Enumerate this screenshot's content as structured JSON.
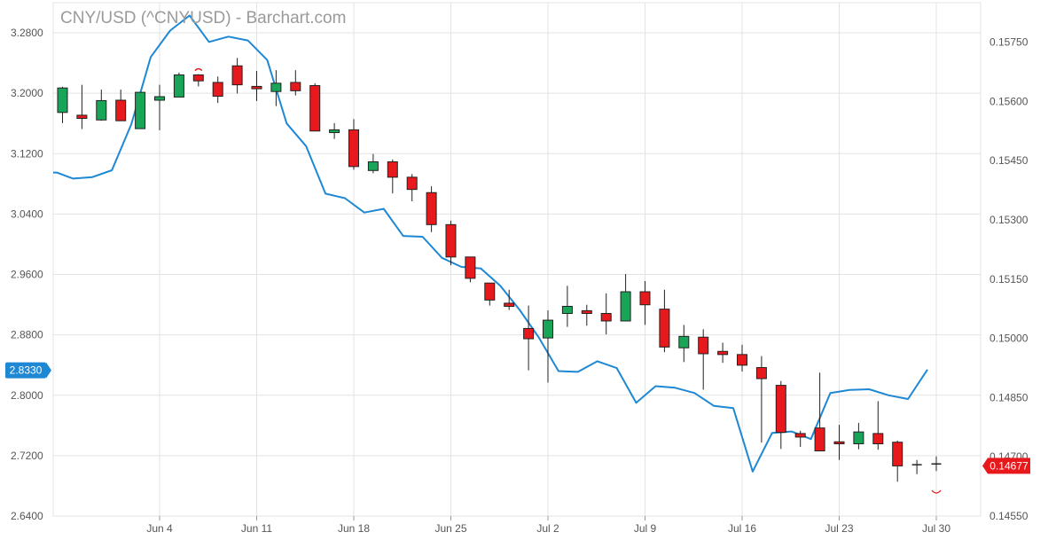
{
  "chart_data": {
    "type": "candlestick",
    "title": "CNY/USD (^CNYUSD) - Barchart.com",
    "grid": true,
    "legend": "none",
    "x_labels": [
      "Jun 4",
      "Jun 11",
      "Jun 18",
      "Jun 25",
      "Jul 2",
      "Jul 9",
      "Jul 16",
      "Jul 23",
      "Jul 30"
    ],
    "left_axis": {
      "ticks": [
        "3.2800",
        "3.2000",
        "3.1200",
        "3.0400",
        "2.9600",
        "2.8800",
        "2.8000",
        "2.7200",
        "2.6400"
      ],
      "range": [
        2.64,
        3.32
      ],
      "current_label": "2.8330",
      "current_value": 2.833,
      "current_color": "#1e88d4"
    },
    "right_axis": {
      "ticks": [
        "0.15750",
        "0.15600",
        "0.15450",
        "0.15300",
        "0.15150",
        "0.15000",
        "0.14850",
        "0.14700",
        "0.14550"
      ],
      "range": [
        0.1455,
        0.1585
      ],
      "current_label": "0.14677",
      "current_value": 0.14677,
      "current_color": "#e8191c"
    },
    "candles": [
      {
        "date": "May 31",
        "open": 0.15572,
        "high": 0.15637,
        "low": 0.15545,
        "close": 0.15634
      },
      {
        "date": "Jun 1",
        "open": 0.15565,
        "high": 0.15642,
        "low": 0.1553,
        "close": 0.15557
      },
      {
        "date": "Jun 4",
        "open": 0.15553,
        "high": 0.1563,
        "low": 0.15551,
        "close": 0.15602
      },
      {
        "date": "Jun 5",
        "open": 0.15603,
        "high": 0.1563,
        "low": 0.15553,
        "close": 0.15551
      },
      {
        "date": "Jun 6",
        "open": 0.15531,
        "high": 0.15623,
        "low": 0.15531,
        "close": 0.15623
      },
      {
        "date": "Jun 7",
        "open": 0.15603,
        "high": 0.15642,
        "low": 0.15527,
        "close": 0.15612
      },
      {
        "date": "Jun 8",
        "open": 0.15611,
        "high": 0.15673,
        "low": 0.15611,
        "close": 0.15667
      },
      {
        "date": "Jun 11",
        "open": 0.15667,
        "high": 0.15669,
        "low": 0.15638,
        "close": 0.15652
      },
      {
        "date": "Jun 12",
        "open": 0.15648,
        "high": 0.15663,
        "low": 0.15596,
        "close": 0.15613
      },
      {
        "date": "Jun 13",
        "open": 0.1569,
        "high": 0.1571,
        "low": 0.1562,
        "close": 0.15642
      },
      {
        "date": "Jun 14",
        "open": 0.15638,
        "high": 0.15677,
        "low": 0.15601,
        "close": 0.15632
      },
      {
        "date": "Jun 15",
        "open": 0.15625,
        "high": 0.15679,
        "low": 0.15588,
        "close": 0.15646
      },
      {
        "date": "Jun 18",
        "open": 0.15648,
        "high": 0.15679,
        "low": 0.15615,
        "close": 0.15627
      },
      {
        "date": "Jun 19",
        "open": 0.1564,
        "high": 0.15646,
        "low": 0.15525,
        "close": 0.15525
      },
      {
        "date": "Jun 20",
        "open": 0.15521,
        "high": 0.15545,
        "low": 0.15505,
        "close": 0.15528
      },
      {
        "date": "Jun 21",
        "open": 0.15528,
        "high": 0.15555,
        "low": 0.15427,
        "close": 0.15435
      },
      {
        "date": "Jun 22",
        "open": 0.15425,
        "high": 0.15467,
        "low": 0.15418,
        "close": 0.15447
      },
      {
        "date": "Jun 25",
        "open": 0.15447,
        "high": 0.15453,
        "low": 0.15367,
        "close": 0.15408
      },
      {
        "date": "Jun 26",
        "open": 0.15408,
        "high": 0.15416,
        "low": 0.15347,
        "close": 0.15377
      },
      {
        "date": "Jun 27",
        "open": 0.15369,
        "high": 0.15385,
        "low": 0.15269,
        "close": 0.15288
      },
      {
        "date": "Jun 28",
        "open": 0.15288,
        "high": 0.15298,
        "low": 0.15185,
        "close": 0.15206
      },
      {
        "date": "Jun 29",
        "open": 0.15206,
        "high": 0.15206,
        "low": 0.15142,
        "close": 0.15152
      },
      {
        "date": "Jul 2",
        "open": 0.1514,
        "high": 0.1514,
        "low": 0.15083,
        "close": 0.15097
      },
      {
        "date": "Jul 3",
        "open": 0.15089,
        "high": 0.15123,
        "low": 0.15072,
        "close": 0.15081
      },
      {
        "date": "Jul 4",
        "open": 0.15025,
        "high": 0.15083,
        "low": 0.14919,
        "close": 0.14999
      },
      {
        "date": "Jul 5",
        "open": 0.15001,
        "high": 0.15071,
        "low": 0.14888,
        "close": 0.15046
      },
      {
        "date": "Jul 6",
        "open": 0.15063,
        "high": 0.15133,
        "low": 0.15029,
        "close": 0.15081
      },
      {
        "date": "Jul 9",
        "open": 0.1507,
        "high": 0.15085,
        "low": 0.15032,
        "close": 0.15063
      },
      {
        "date": "Jul 10",
        "open": 0.15063,
        "high": 0.15114,
        "low": 0.1501,
        "close": 0.15044
      },
      {
        "date": "Jul 11",
        "open": 0.15044,
        "high": 0.15163,
        "low": 0.15044,
        "close": 0.15118
      },
      {
        "date": "Jul 12",
        "open": 0.15118,
        "high": 0.15145,
        "low": 0.15034,
        "close": 0.15085
      },
      {
        "date": "Jul 13",
        "open": 0.15074,
        "high": 0.15123,
        "low": 0.14965,
        "close": 0.14978
      },
      {
        "date": "Jul 16",
        "open": 0.14976,
        "high": 0.15034,
        "low": 0.1494,
        "close": 0.15005
      },
      {
        "date": "Jul 17",
        "open": 0.15003,
        "high": 0.15023,
        "low": 0.1487,
        "close": 0.14961
      },
      {
        "date": "Jul 18",
        "open": 0.14967,
        "high": 0.14989,
        "low": 0.14938,
        "close": 0.14959
      },
      {
        "date": "Jul 19",
        "open": 0.14959,
        "high": 0.14984,
        "low": 0.14916,
        "close": 0.14932
      },
      {
        "date": "Jul 20",
        "open": 0.14926,
        "high": 0.14955,
        "low": 0.14736,
        "close": 0.14898
      },
      {
        "date": "Jul 23",
        "open": 0.14881,
        "high": 0.14892,
        "low": 0.1472,
        "close": 0.14762
      },
      {
        "date": "Jul 24",
        "open": 0.14759,
        "high": 0.14766,
        "low": 0.14725,
        "close": 0.1475
      },
      {
        "date": "Jul 25",
        "open": 0.14773,
        "high": 0.14913,
        "low": 0.14723,
        "close": 0.14715
      },
      {
        "date": "Jul 26",
        "open": 0.14738,
        "high": 0.14781,
        "low": 0.14692,
        "close": 0.14733
      },
      {
        "date": "Jul 27",
        "open": 0.14733,
        "high": 0.14786,
        "low": 0.14719,
        "close": 0.14763
      },
      {
        "date": "Jul 30",
        "open": 0.14759,
        "high": 0.14841,
        "low": 0.14718,
        "close": 0.14733
      },
      {
        "date": "Jul 31",
        "open": 0.14737,
        "high": 0.14741,
        "low": 0.14637,
        "close": 0.14677
      },
      {
        "date": "Aug 1",
        "open": 0.14677,
        "high": 0.14692,
        "low": 0.14656,
        "close": 0.1468
      },
      {
        "date": "Aug 2",
        "open": 0.14682,
        "high": 0.14701,
        "low": 0.14664,
        "close": 0.14678
      }
    ],
    "line_series": {
      "color": "#1e88d4",
      "values": [
        3.095,
        3.087,
        3.089,
        3.098,
        3.159,
        3.248,
        3.283,
        3.303,
        3.268,
        3.275,
        3.27,
        3.244,
        3.16,
        3.13,
        3.067,
        3.061,
        3.042,
        3.047,
        3.011,
        3.01,
        2.982,
        2.97,
        2.968,
        2.945,
        2.913,
        2.876,
        2.832,
        2.831,
        2.845,
        2.836,
        2.79,
        2.812,
        2.81,
        2.803,
        2.786,
        2.783,
        2.699,
        2.75,
        2.752,
        2.742,
        2.803,
        2.807,
        2.808,
        2.8,
        2.795,
        2.834
      ]
    },
    "colors": {
      "up": "#18a558",
      "down": "#e8191c",
      "grid": "#e3e3e3"
    }
  }
}
